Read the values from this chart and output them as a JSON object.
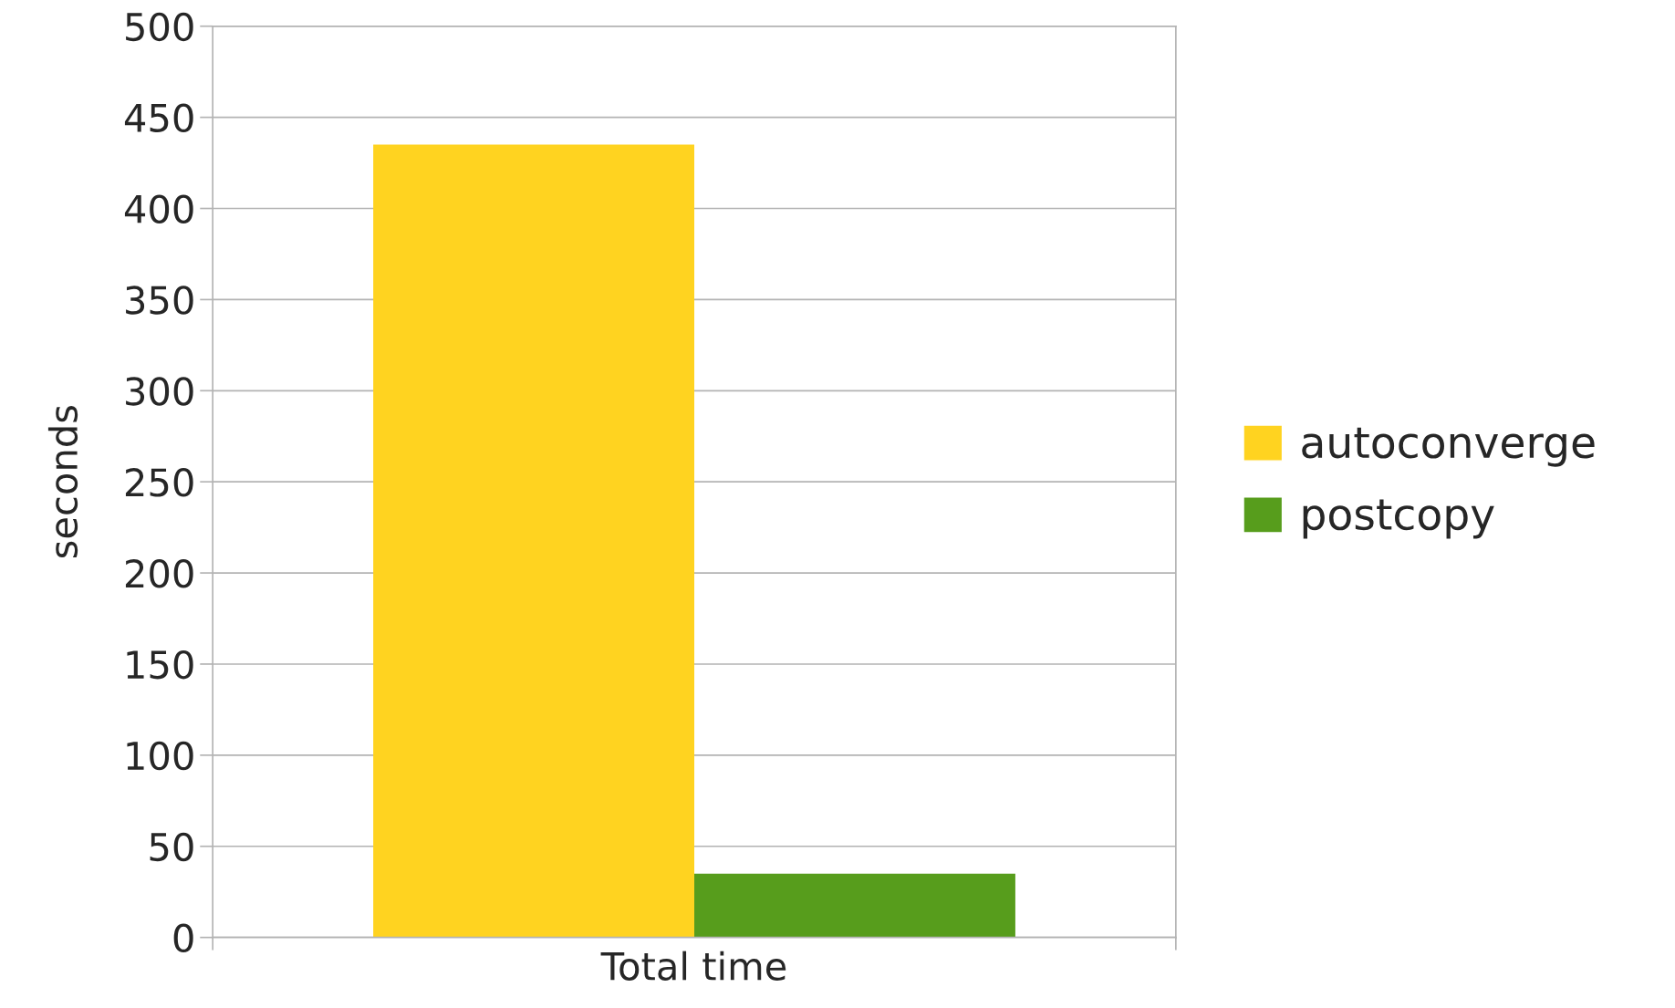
{
  "chart_data": {
    "type": "bar",
    "categories": [
      "Total time"
    ],
    "ylabel": "seconds",
    "series": [
      {
        "name": "autoconverge",
        "color": "#ffd320",
        "values": [
          435
        ]
      },
      {
        "name": "postcopy",
        "color": "#579d1c",
        "values": [
          35
        ]
      }
    ],
    "ylim": [
      0,
      500
    ],
    "yticks": [
      0,
      50,
      100,
      150,
      200,
      250,
      300,
      350,
      400,
      450,
      500
    ],
    "grid": "y",
    "legend": "right"
  }
}
